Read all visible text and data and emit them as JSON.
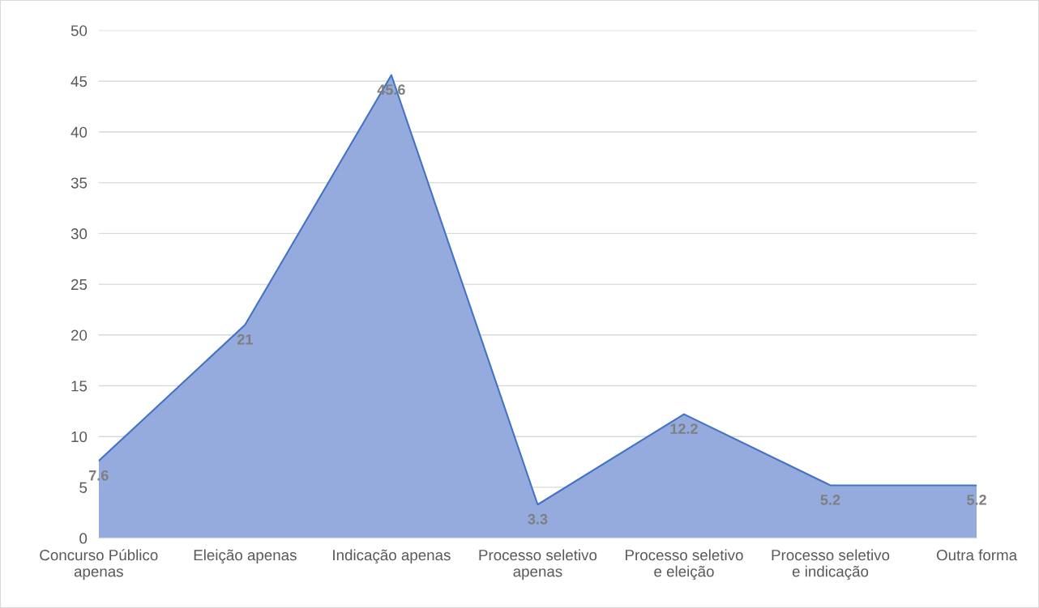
{
  "chart_data": {
    "type": "area",
    "categories": [
      "Concurso Público apenas",
      "Eleição apenas",
      "Indicação apenas",
      "Processo seletivo apenas",
      "Processo seletivo e eleição",
      "Processo seletivo e indicação",
      "Outra forma"
    ],
    "series": [
      {
        "color": "#8fa5db",
        "values": [
          7.6,
          21,
          45.6,
          3.3,
          12.2,
          5.2,
          5.2
        ]
      }
    ],
    "ylim": [
      0,
      50
    ],
    "yticks": [
      0,
      5,
      10,
      15,
      20,
      25,
      30,
      35,
      40,
      45,
      50
    ],
    "grid": "y",
    "data_labels": true
  }
}
